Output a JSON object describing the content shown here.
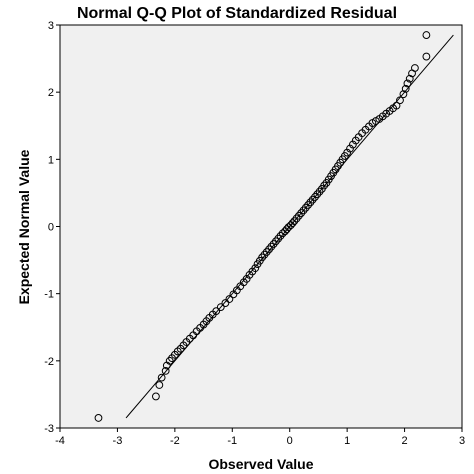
{
  "chart_data": {
    "type": "scatter",
    "title": "Normal Q-Q Plot of Standardized Residual",
    "xlabel": "Observed Value",
    "ylabel": "Expected Normal Value",
    "xlim": [
      -4,
      3
    ],
    "ylim": [
      -3,
      3
    ],
    "x_ticks": [
      "-4",
      "-3",
      "-2",
      "-1",
      "0",
      "1",
      "2",
      "3"
    ],
    "y_ticks": [
      "-3",
      "-2",
      "-1",
      "0",
      "1",
      "2",
      "3"
    ],
    "plot_background": "#f0f0f0",
    "marker_color": "#000000",
    "line_color": "#000000",
    "grid": false,
    "reference_line": {
      "x": [
        -2.85,
        2.85
      ],
      "y": [
        -2.85,
        2.85
      ]
    },
    "series": [
      {
        "points": [
          [
            -3.33,
            -2.85
          ],
          [
            -2.33,
            -2.53
          ],
          [
            -2.27,
            -2.36
          ],
          [
            -2.23,
            -2.25
          ],
          [
            -2.16,
            -2.15
          ],
          [
            -2.14,
            -2.07
          ],
          [
            -2.09,
            -2.0
          ],
          [
            -2.05,
            -1.96
          ],
          [
            -2.0,
            -1.91
          ],
          [
            -1.95,
            -1.86
          ],
          [
            -1.9,
            -1.82
          ],
          [
            -1.85,
            -1.77
          ],
          [
            -1.8,
            -1.72
          ],
          [
            -1.74,
            -1.67
          ],
          [
            -1.68,
            -1.62
          ],
          [
            -1.62,
            -1.56
          ],
          [
            -1.56,
            -1.51
          ],
          [
            -1.5,
            -1.46
          ],
          [
            -1.45,
            -1.41
          ],
          [
            -1.4,
            -1.36
          ],
          [
            -1.34,
            -1.31
          ],
          [
            -1.28,
            -1.26
          ],
          [
            -1.2,
            -1.2
          ],
          [
            -1.12,
            -1.14
          ],
          [
            -1.05,
            -1.08
          ],
          [
            -0.98,
            -1.01
          ],
          [
            -0.92,
            -0.95
          ],
          [
            -0.86,
            -0.89
          ],
          [
            -0.8,
            -0.83
          ],
          [
            -0.75,
            -0.78
          ],
          [
            -0.7,
            -0.72
          ],
          [
            -0.65,
            -0.67
          ],
          [
            -0.6,
            -0.62
          ],
          [
            -0.56,
            -0.56
          ],
          [
            -0.52,
            -0.51
          ],
          [
            -0.48,
            -0.46
          ],
          [
            -0.44,
            -0.42
          ],
          [
            -0.4,
            -0.38
          ],
          [
            -0.36,
            -0.34
          ],
          [
            -0.32,
            -0.3
          ],
          [
            -0.28,
            -0.26
          ],
          [
            -0.24,
            -0.22
          ],
          [
            -0.2,
            -0.18
          ],
          [
            -0.16,
            -0.14
          ],
          [
            -0.12,
            -0.1
          ],
          [
            -0.08,
            -0.07
          ],
          [
            -0.05,
            -0.04
          ],
          [
            -0.02,
            -0.01
          ],
          [
            0.02,
            0.02
          ],
          [
            0.05,
            0.05
          ],
          [
            0.08,
            0.08
          ],
          [
            0.12,
            0.12
          ],
          [
            0.16,
            0.16
          ],
          [
            0.2,
            0.2
          ],
          [
            0.24,
            0.24
          ],
          [
            0.28,
            0.28
          ],
          [
            0.32,
            0.32
          ],
          [
            0.36,
            0.36
          ],
          [
            0.4,
            0.4
          ],
          [
            0.44,
            0.44
          ],
          [
            0.48,
            0.48
          ],
          [
            0.52,
            0.52
          ],
          [
            0.56,
            0.56
          ],
          [
            0.6,
            0.61
          ],
          [
            0.64,
            0.65
          ],
          [
            0.68,
            0.7
          ],
          [
            0.72,
            0.75
          ],
          [
            0.76,
            0.8
          ],
          [
            0.8,
            0.85
          ],
          [
            0.84,
            0.9
          ],
          [
            0.88,
            0.95
          ],
          [
            0.92,
            1.0
          ],
          [
            0.96,
            1.05
          ],
          [
            1.0,
            1.1
          ],
          [
            1.05,
            1.16
          ],
          [
            1.1,
            1.22
          ],
          [
            1.15,
            1.28
          ],
          [
            1.2,
            1.33
          ],
          [
            1.26,
            1.39
          ],
          [
            1.32,
            1.44
          ],
          [
            1.38,
            1.49
          ],
          [
            1.44,
            1.54
          ],
          [
            1.5,
            1.57
          ],
          [
            1.56,
            1.6
          ],
          [
            1.62,
            1.64
          ],
          [
            1.68,
            1.68
          ],
          [
            1.74,
            1.72
          ],
          [
            1.8,
            1.76
          ],
          [
            1.86,
            1.8
          ],
          [
            1.92,
            1.88
          ],
          [
            1.98,
            1.97
          ],
          [
            2.02,
            2.05
          ],
          [
            2.05,
            2.13
          ],
          [
            2.09,
            2.2
          ],
          [
            2.13,
            2.28
          ],
          [
            2.18,
            2.36
          ],
          [
            2.38,
            2.53
          ],
          [
            2.38,
            2.85
          ]
        ]
      }
    ]
  }
}
